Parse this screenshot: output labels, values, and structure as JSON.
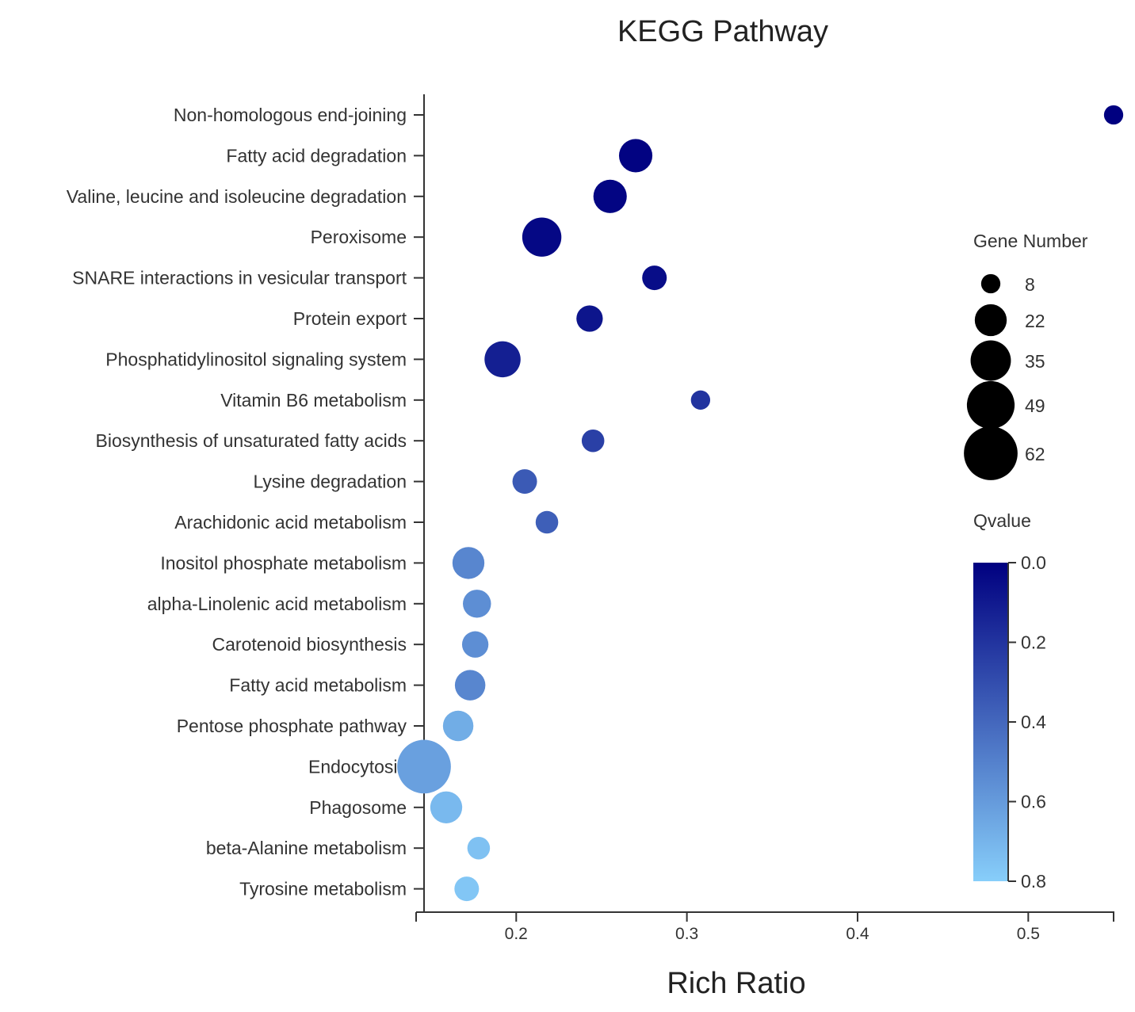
{
  "chart_data": {
    "type": "scatter",
    "title": "KEGG Pathway",
    "xlabel": "Rich Ratio",
    "ylabel": "",
    "xlim": [
      0.146,
      0.55
    ],
    "xticks": [
      0.2,
      0.3,
      0.4,
      0.5
    ],
    "xtick_labels": [
      "0.2",
      "0.3",
      "0.4",
      "0.5"
    ],
    "categories": [
      "Non-homologous end-joining",
      "Fatty acid degradation",
      "Valine, leucine and isoleucine degradation",
      "Peroxisome",
      "SNARE interactions in vesicular transport",
      "Protein export",
      "Phosphatidylinositol signaling system",
      "Vitamin B6 metabolism",
      "Biosynthesis of unsaturated fatty acids",
      "Lysine degradation",
      "Arachidonic acid metabolism",
      "Inositol phosphate metabolism",
      "alpha-Linolenic acid metabolism",
      "Carotenoid biosynthesis",
      "Fatty acid metabolism",
      "Pentose phosphate pathway",
      "Endocytosis",
      "Phagosome",
      "beta-Alanine metabolism",
      "Tyrosine metabolism"
    ],
    "points": [
      {
        "pathway": "Non-homologous end-joining",
        "rich_ratio": 0.55,
        "gene_number": 8,
        "qvalue": 0.0
      },
      {
        "pathway": "Fatty acid degradation",
        "rich_ratio": 0.27,
        "gene_number": 24,
        "qvalue": 0.01
      },
      {
        "pathway": "Valine, leucine and isoleucine degradation",
        "rich_ratio": 0.255,
        "gene_number": 24,
        "qvalue": 0.02
      },
      {
        "pathway": "Peroxisome",
        "rich_ratio": 0.215,
        "gene_number": 33,
        "qvalue": 0.03
      },
      {
        "pathway": "SNARE interactions in vesicular transport",
        "rich_ratio": 0.281,
        "gene_number": 13,
        "qvalue": 0.05
      },
      {
        "pathway": "Protein export",
        "rich_ratio": 0.243,
        "gene_number": 15,
        "qvalue": 0.08
      },
      {
        "pathway": "Phosphatidylinositol signaling system",
        "rich_ratio": 0.192,
        "gene_number": 28,
        "qvalue": 0.12
      },
      {
        "pathway": "Vitamin B6 metabolism",
        "rich_ratio": 0.308,
        "gene_number": 8,
        "qvalue": 0.2
      },
      {
        "pathway": "Biosynthesis of unsaturated fatty acids",
        "rich_ratio": 0.245,
        "gene_number": 11,
        "qvalue": 0.25
      },
      {
        "pathway": "Lysine degradation",
        "rich_ratio": 0.205,
        "gene_number": 13,
        "qvalue": 0.35
      },
      {
        "pathway": "Arachidonic acid metabolism",
        "rich_ratio": 0.218,
        "gene_number": 11,
        "qvalue": 0.37
      },
      {
        "pathway": "Inositol phosphate metabolism",
        "rich_ratio": 0.172,
        "gene_number": 22,
        "qvalue": 0.52
      },
      {
        "pathway": "alpha-Linolenic acid metabolism",
        "rich_ratio": 0.177,
        "gene_number": 17,
        "qvalue": 0.55
      },
      {
        "pathway": "Carotenoid biosynthesis",
        "rich_ratio": 0.176,
        "gene_number": 15,
        "qvalue": 0.55
      },
      {
        "pathway": "Fatty acid metabolism",
        "rich_ratio": 0.173,
        "gene_number": 20,
        "qvalue": 0.52
      },
      {
        "pathway": "Pentose phosphate pathway",
        "rich_ratio": 0.166,
        "gene_number": 20,
        "qvalue": 0.67
      },
      {
        "pathway": "Endocytosis",
        "rich_ratio": 0.146,
        "gene_number": 62,
        "qvalue": 0.62
      },
      {
        "pathway": "Phagosome",
        "rich_ratio": 0.159,
        "gene_number": 22,
        "qvalue": 0.72
      },
      {
        "pathway": "beta-Alanine metabolism",
        "rich_ratio": 0.178,
        "gene_number": 11,
        "qvalue": 0.75
      },
      {
        "pathway": "Tyrosine metabolism",
        "rich_ratio": 0.171,
        "gene_number": 13,
        "qvalue": 0.77
      }
    ],
    "size_legend": {
      "title": "Gene Number",
      "values": [
        8,
        22,
        35,
        49,
        62
      ],
      "labels": [
        "8",
        "22",
        "35",
        "49",
        "62"
      ]
    },
    "color_legend": {
      "title": "Qvalue",
      "range": [
        0.0,
        0.8
      ],
      "ticks": [
        0.0,
        0.2,
        0.4,
        0.6,
        0.8
      ],
      "tick_labels": [
        "0.0",
        "0.2",
        "0.4",
        "0.6",
        "0.8"
      ],
      "color_low": "#000080",
      "color_high": "#87CEFA"
    }
  }
}
